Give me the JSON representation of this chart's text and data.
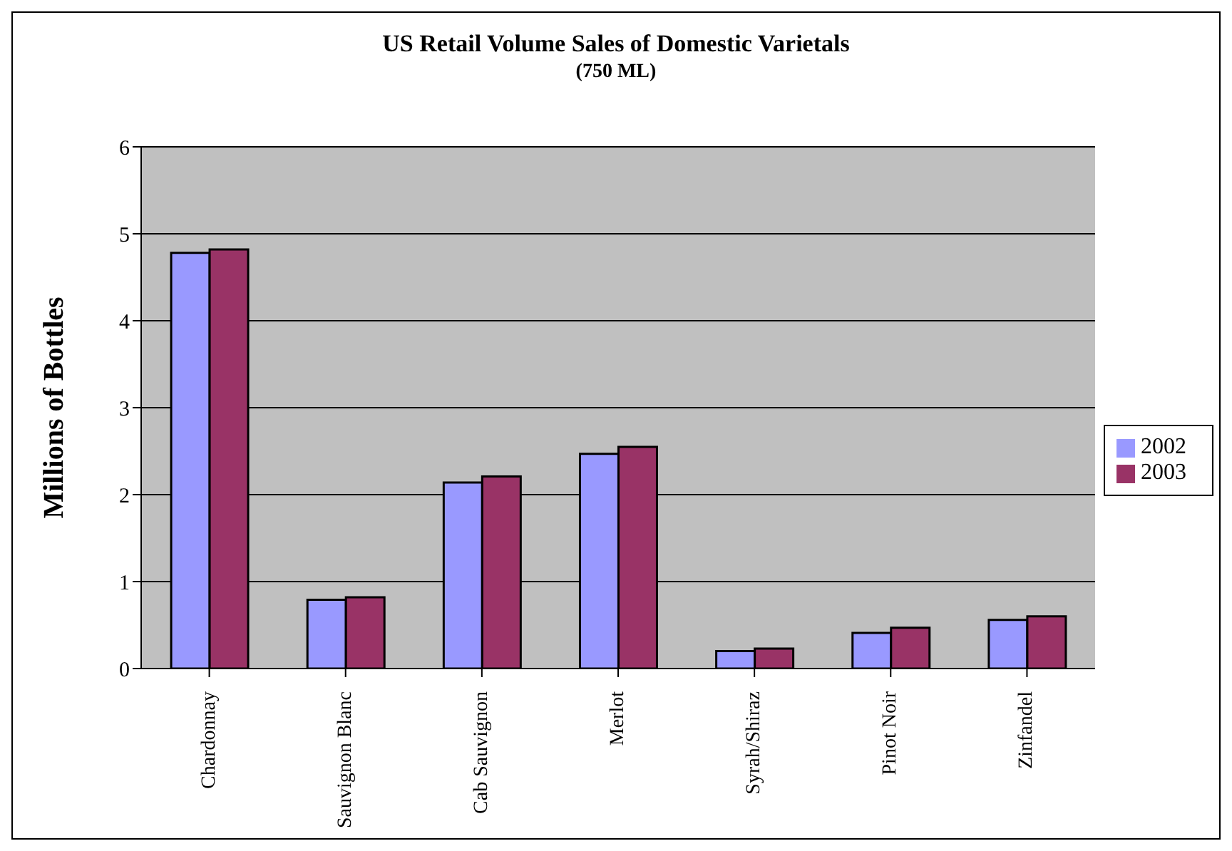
{
  "chart_data": {
    "type": "bar",
    "title": "US Retail Volume Sales of Domestic Varietals",
    "subtitle": "(750 ML)",
    "ylabel": "Millions of Bottles",
    "categories": [
      "Chardonnay",
      "Sauvignon Blanc",
      "Cab Sauvignon",
      "Merlot",
      "Syrah/Shiraz",
      "Pinot Noir",
      "Zinfandel"
    ],
    "series": [
      {
        "name": "2002",
        "color": "#9999ff",
        "values": [
          4.78,
          0.79,
          2.14,
          2.47,
          0.2,
          0.41,
          0.56
        ]
      },
      {
        "name": "2003",
        "color": "#993366",
        "values": [
          4.82,
          0.82,
          2.21,
          2.55,
          0.23,
          0.47,
          0.6
        ]
      }
    ],
    "ylim": [
      0,
      6
    ],
    "yticks": [
      0,
      1,
      2,
      3,
      4,
      5,
      6
    ],
    "grid": "y",
    "legend": "right"
  }
}
